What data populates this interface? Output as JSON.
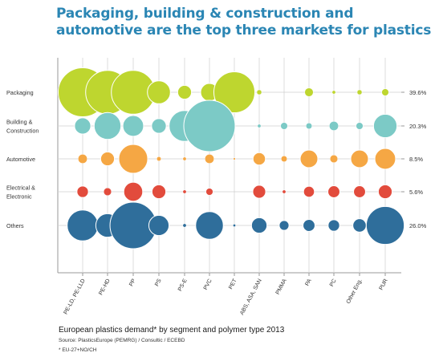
{
  "title": {
    "line1": "Packaging, building & construction and",
    "line2": "automotive are the top three markets for plastics"
  },
  "caption": "European plastics demand* by segment and polymer type 2013",
  "source": "Source: PlasticsEurope (PEMRG) / Consultic / ECEBD",
  "footnote": "* EU-27+NO/CH",
  "chart_data": {
    "type": "scatter",
    "title": "Packaging, building & construction and automotive are the top three markets for plastics",
    "x_categories": [
      "PE-LD, PE-LLD",
      "PE-HD",
      "PP",
      "PS",
      "PS-E",
      "PVC",
      "PET",
      "ABS, ASA, SAN",
      "PMMA",
      "PA",
      "PC",
      "Other Eng.",
      "PUR"
    ],
    "series": [
      {
        "name": "Packaging",
        "share": "39.6%",
        "color": "#bed62f",
        "values": [
          10,
          8,
          8,
          2.2,
          0.8,
          1.3,
          7,
          0.1,
          0,
          0.3,
          0.05,
          0.1,
          0.2
        ]
      },
      {
        "name": "Building & Construction",
        "share": "20.3%",
        "color": "#7ccac6",
        "values": [
          1.1,
          3,
          1.8,
          0.9,
          4,
          11,
          0,
          0.05,
          0.2,
          0.15,
          0.35,
          0.2,
          2.3
        ]
      },
      {
        "name": "Automotive",
        "share": "8.5%",
        "color": "#f5a744",
        "values": [
          0.35,
          0.8,
          3.5,
          0.08,
          0.05,
          0.35,
          0.02,
          0.65,
          0.15,
          1.3,
          0.25,
          1.3,
          1.8
        ]
      },
      {
        "name": "Electrical & Electronic",
        "share": "5.6%",
        "color": "#e24b3c",
        "values": [
          0.55,
          0.25,
          1.5,
          0.8,
          0.05,
          0.2,
          0,
          0.7,
          0.05,
          0.5,
          0.6,
          0.6,
          0.8
        ]
      },
      {
        "name": "Others",
        "share": "26.0%",
        "color": "#2f6e9b",
        "values": [
          4,
          2.3,
          9,
          1.7,
          0.05,
          3.2,
          0.03,
          1,
          0.4,
          0.6,
          0.55,
          0.75,
          6
        ]
      }
    ]
  }
}
